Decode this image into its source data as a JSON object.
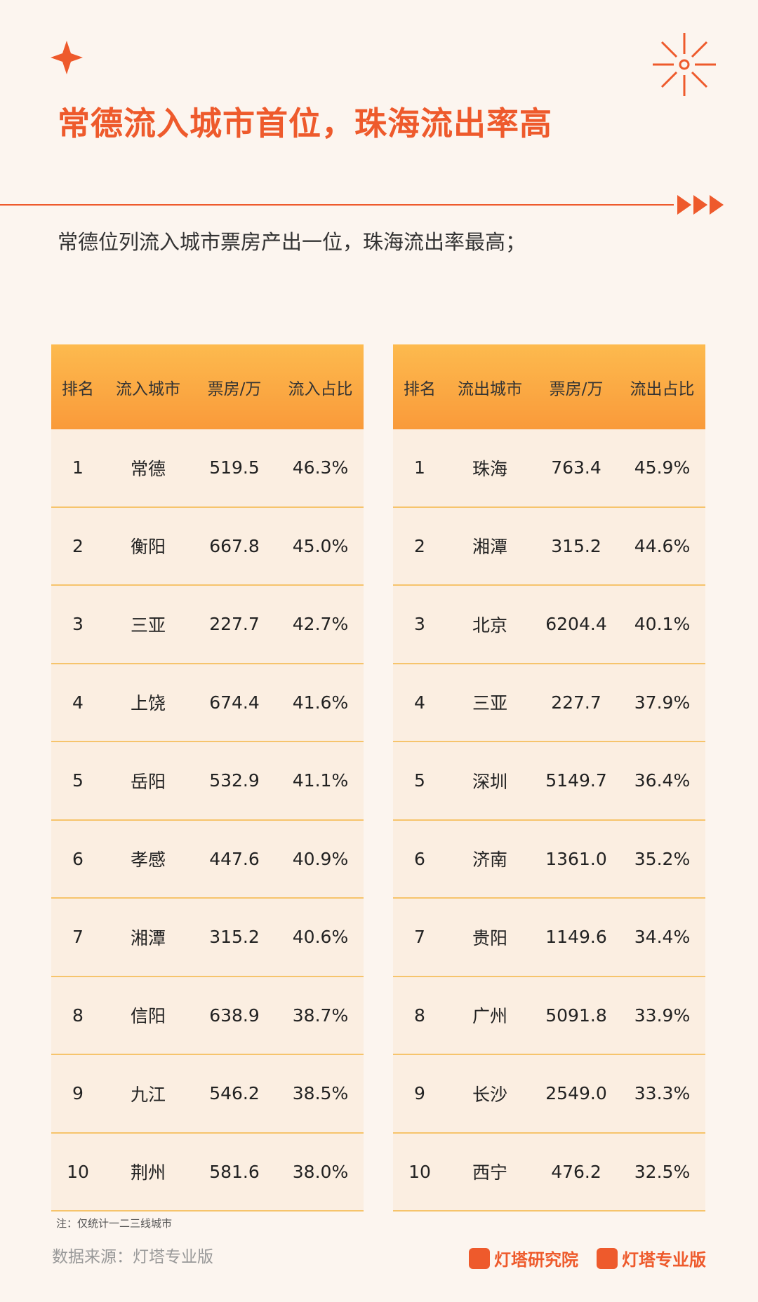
{
  "header": {
    "title": "常德流入城市首位，珠海流出率高",
    "subtitle": "常德位列流入城市票房产出一位，珠海流出率最高；"
  },
  "tables": [
    {
      "columns": [
        "排名",
        "流入城市",
        "票房/万",
        "流入占比"
      ],
      "rows": [
        [
          "1",
          "常德",
          "519.5",
          "46.3%"
        ],
        [
          "2",
          "衡阳",
          "667.8",
          "45.0%"
        ],
        [
          "3",
          "三亚",
          "227.7",
          "42.7%"
        ],
        [
          "4",
          "上饶",
          "674.4",
          "41.6%"
        ],
        [
          "5",
          "岳阳",
          "532.9",
          "41.1%"
        ],
        [
          "6",
          "孝感",
          "447.6",
          "40.9%"
        ],
        [
          "7",
          "湘潭",
          "315.2",
          "40.6%"
        ],
        [
          "8",
          "信阳",
          "638.9",
          "38.7%"
        ],
        [
          "9",
          "九江",
          "546.2",
          "38.5%"
        ],
        [
          "10",
          "荆州",
          "581.6",
          "38.0%"
        ]
      ]
    },
    {
      "columns": [
        "排名",
        "流出城市",
        "票房/万",
        "流出占比"
      ],
      "rows": [
        [
          "1",
          "珠海",
          "763.4",
          "45.9%"
        ],
        [
          "2",
          "湘潭",
          "315.2",
          "44.6%"
        ],
        [
          "3",
          "北京",
          "6204.4",
          "40.1%"
        ],
        [
          "4",
          "三亚",
          "227.7",
          "37.9%"
        ],
        [
          "5",
          "深圳",
          "5149.7",
          "36.4%"
        ],
        [
          "6",
          "济南",
          "1361.0",
          "35.2%"
        ],
        [
          "7",
          "贵阳",
          "1149.6",
          "34.4%"
        ],
        [
          "8",
          "广州",
          "5091.8",
          "33.9%"
        ],
        [
          "9",
          "长沙",
          "2549.0",
          "33.3%"
        ],
        [
          "10",
          "西宁",
          "476.2",
          "32.5%"
        ]
      ]
    }
  ],
  "footer": {
    "note": "注：仅统计一二三线城市",
    "source": "数据来源：灯塔专业版",
    "logos": [
      "灯塔研究院",
      "灯塔专业版"
    ]
  }
}
